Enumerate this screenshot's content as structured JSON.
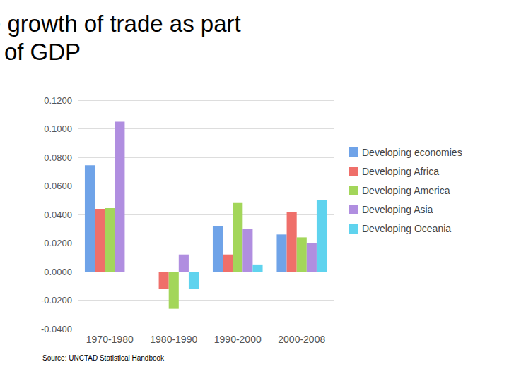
{
  "chart_data": {
    "type": "bar",
    "title": "Annual average growth of trade as part of GDP",
    "source": "Source: UNCTAD Statistical Handbook",
    "categories": [
      "1970-1980",
      "1980-1990",
      "1990-2000",
      "2000-2008"
    ],
    "series": [
      {
        "name": "Developing economies",
        "color": "#6fa3e8",
        "values": [
          0.0745,
          0.0,
          0.032,
          0.026
        ]
      },
      {
        "name": "Developing Africa",
        "color": "#ef6f6a",
        "values": [
          0.044,
          -0.012,
          0.012,
          0.042
        ]
      },
      {
        "name": "Developing America",
        "color": "#a3d65a",
        "values": [
          0.0445,
          -0.026,
          0.048,
          0.024
        ]
      },
      {
        "name": "Developing Asia",
        "color": "#b08ee0",
        "values": [
          0.105,
          0.012,
          0.03,
          0.02
        ]
      },
      {
        "name": "Developing Oceania",
        "color": "#5fd3ee",
        "values": [
          null,
          -0.012,
          0.005,
          0.05
        ]
      }
    ],
    "ylim": [
      -0.04,
      0.12
    ],
    "yticks": [
      {
        "value": -0.04,
        "label": "-0.0400"
      },
      {
        "value": -0.02,
        "label": "-0.0200"
      },
      {
        "value": 0,
        "label": "0.0000"
      },
      {
        "value": 0.02,
        "label": "0.0200"
      },
      {
        "value": 0.04,
        "label": "0.0400"
      },
      {
        "value": 0.06,
        "label": "0.0600"
      },
      {
        "value": 0.08,
        "label": "0.0800"
      },
      {
        "value": 0.1,
        "label": "0.1000"
      },
      {
        "value": 0.12,
        "label": "0.1200"
      }
    ],
    "grid": true,
    "legend": "right"
  }
}
